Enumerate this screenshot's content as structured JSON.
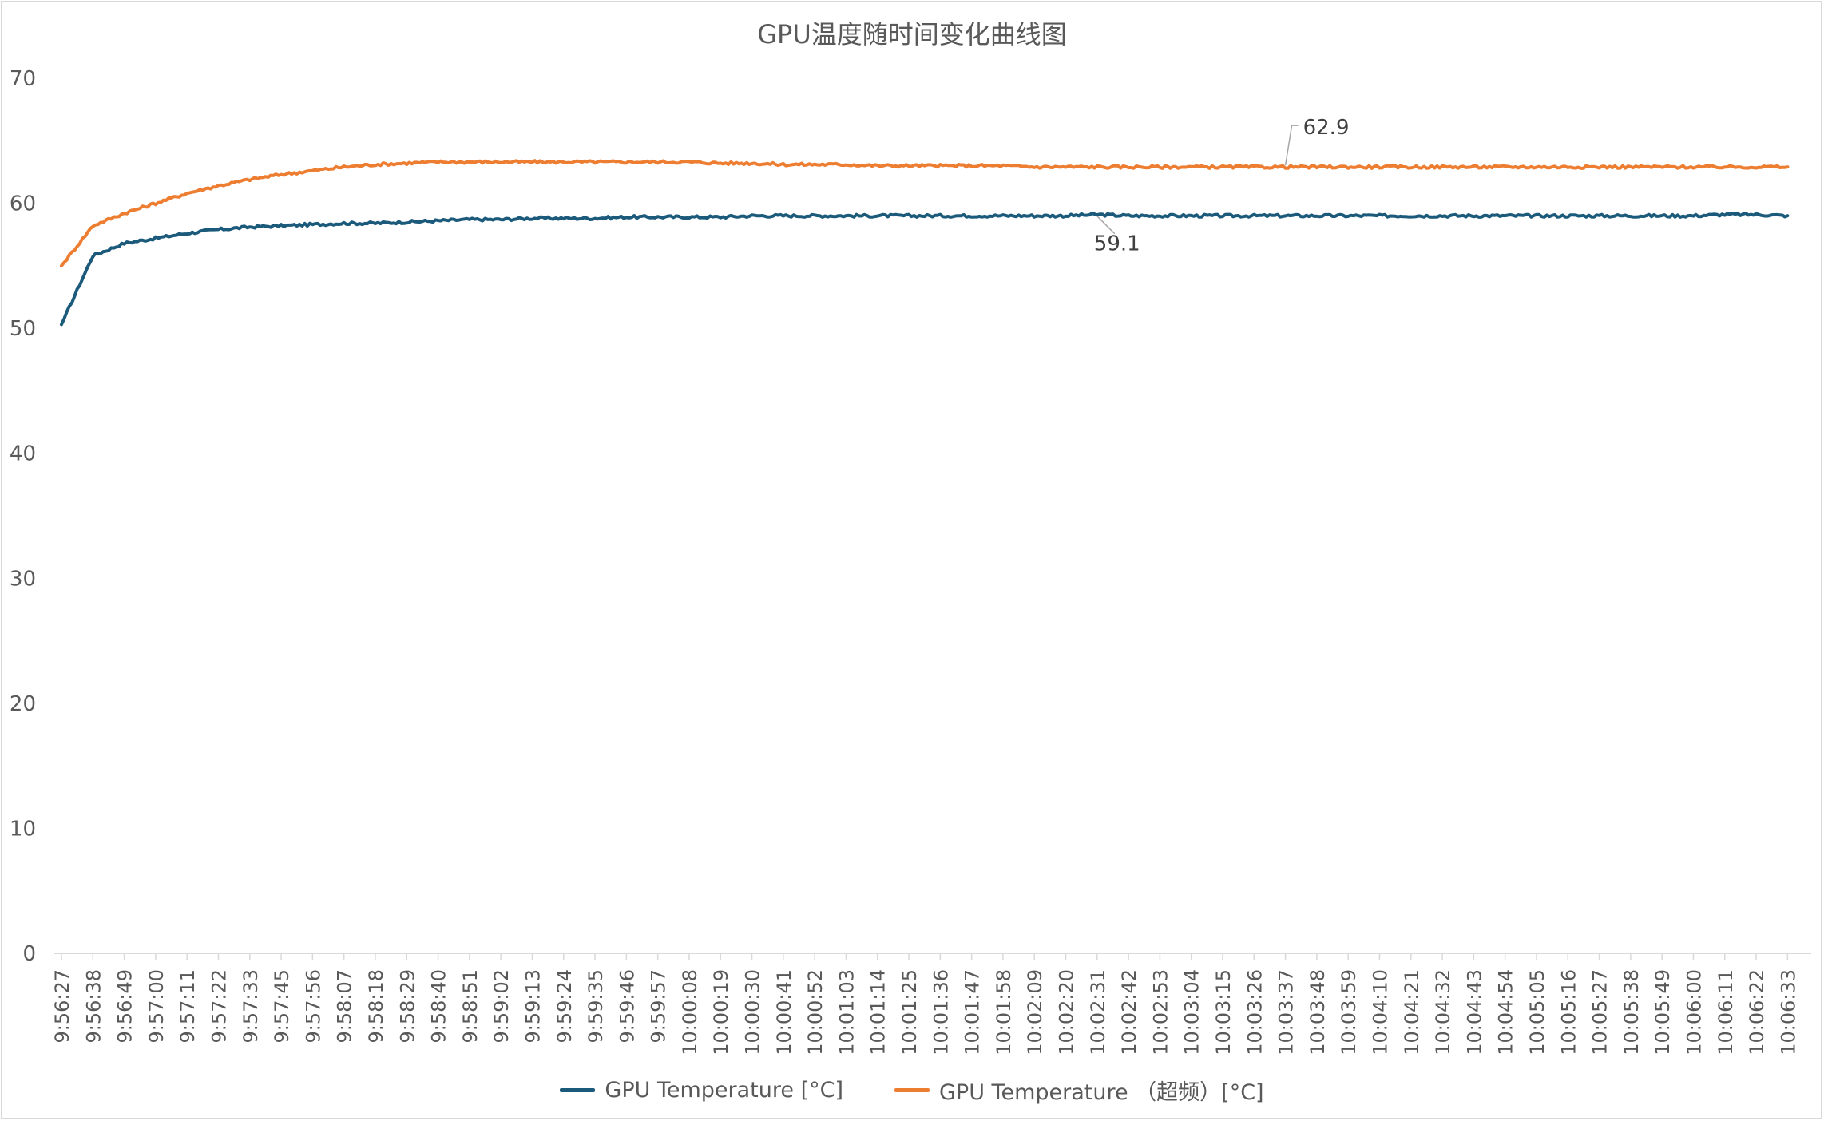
{
  "chart_data": {
    "type": "line",
    "title": "GPU温度随时间变化曲线图",
    "xlabel": "",
    "ylabel": "",
    "ylim": [
      0,
      70
    ],
    "yticks": [
      0,
      10,
      20,
      30,
      40,
      50,
      60,
      70
    ],
    "grid": false,
    "legend_position": "bottom",
    "categories": [
      "9:56:27",
      "9:56:38",
      "9:56:49",
      "9:57:00",
      "9:57:11",
      "9:57:22",
      "9:57:33",
      "9:57:45",
      "9:57:56",
      "9:58:07",
      "9:58:18",
      "9:58:29",
      "9:58:40",
      "9:58:51",
      "9:59:02",
      "9:59:13",
      "9:59:24",
      "9:59:35",
      "9:59:46",
      "9:59:57",
      "10:00:08",
      "10:00:19",
      "10:00:30",
      "10:00:41",
      "10:00:52",
      "10:01:03",
      "10:01:14",
      "10:01:25",
      "10:01:36",
      "10:01:47",
      "10:01:58",
      "10:02:09",
      "10:02:20",
      "10:02:31",
      "10:02:42",
      "10:02:53",
      "10:03:04",
      "10:03:15",
      "10:03:26",
      "10:03:37",
      "10:03:48",
      "10:03:59",
      "10:04:10",
      "10:04:21",
      "10:04:32",
      "10:04:43",
      "10:04:54",
      "10:05:05",
      "10:05:16",
      "10:05:27",
      "10:05:38",
      "10:05:49",
      "10:06:00",
      "10:06:11",
      "10:06:22",
      "10:06:33"
    ],
    "series": [
      {
        "name": "GPU Temperature [°C]",
        "color": "#1b5a7a",
        "values": [
          50.3,
          55.8,
          56.8,
          57.2,
          57.6,
          57.9,
          58.1,
          58.2,
          58.3,
          58.4,
          58.4,
          58.5,
          58.6,
          58.7,
          58.7,
          58.8,
          58.8,
          58.8,
          58.9,
          58.9,
          58.9,
          58.9,
          59.0,
          59.0,
          59.0,
          59.0,
          59.0,
          59.0,
          59.0,
          59.0,
          59.0,
          59.0,
          59.0,
          59.1,
          59.0,
          59.0,
          59.0,
          59.0,
          59.0,
          59.0,
          59.0,
          59.0,
          59.0,
          59.0,
          59.0,
          59.0,
          59.0,
          59.0,
          59.0,
          59.0,
          59.0,
          59.0,
          59.0,
          59.1,
          59.1,
          59.0
        ],
        "data_label": {
          "text": "59.1",
          "category": "10:02:31"
        }
      },
      {
        "name": "GPU Temperature （超频）[°C]",
        "color": "#ed7d31",
        "values": [
          55.0,
          58.2,
          59.2,
          60.0,
          60.8,
          61.4,
          61.9,
          62.3,
          62.6,
          62.9,
          63.1,
          63.2,
          63.3,
          63.3,
          63.3,
          63.3,
          63.3,
          63.3,
          63.3,
          63.3,
          63.3,
          63.2,
          63.2,
          63.1,
          63.1,
          63.1,
          63.0,
          63.0,
          63.0,
          63.0,
          63.0,
          62.9,
          62.9,
          62.9,
          62.9,
          62.9,
          62.9,
          62.9,
          62.9,
          62.9,
          62.9,
          62.9,
          62.9,
          62.9,
          62.9,
          62.9,
          62.9,
          62.9,
          62.9,
          62.9,
          62.9,
          62.9,
          62.9,
          62.9,
          62.9,
          62.9
        ],
        "data_label": {
          "text": "62.9",
          "category": "10:03:37"
        }
      }
    ]
  }
}
